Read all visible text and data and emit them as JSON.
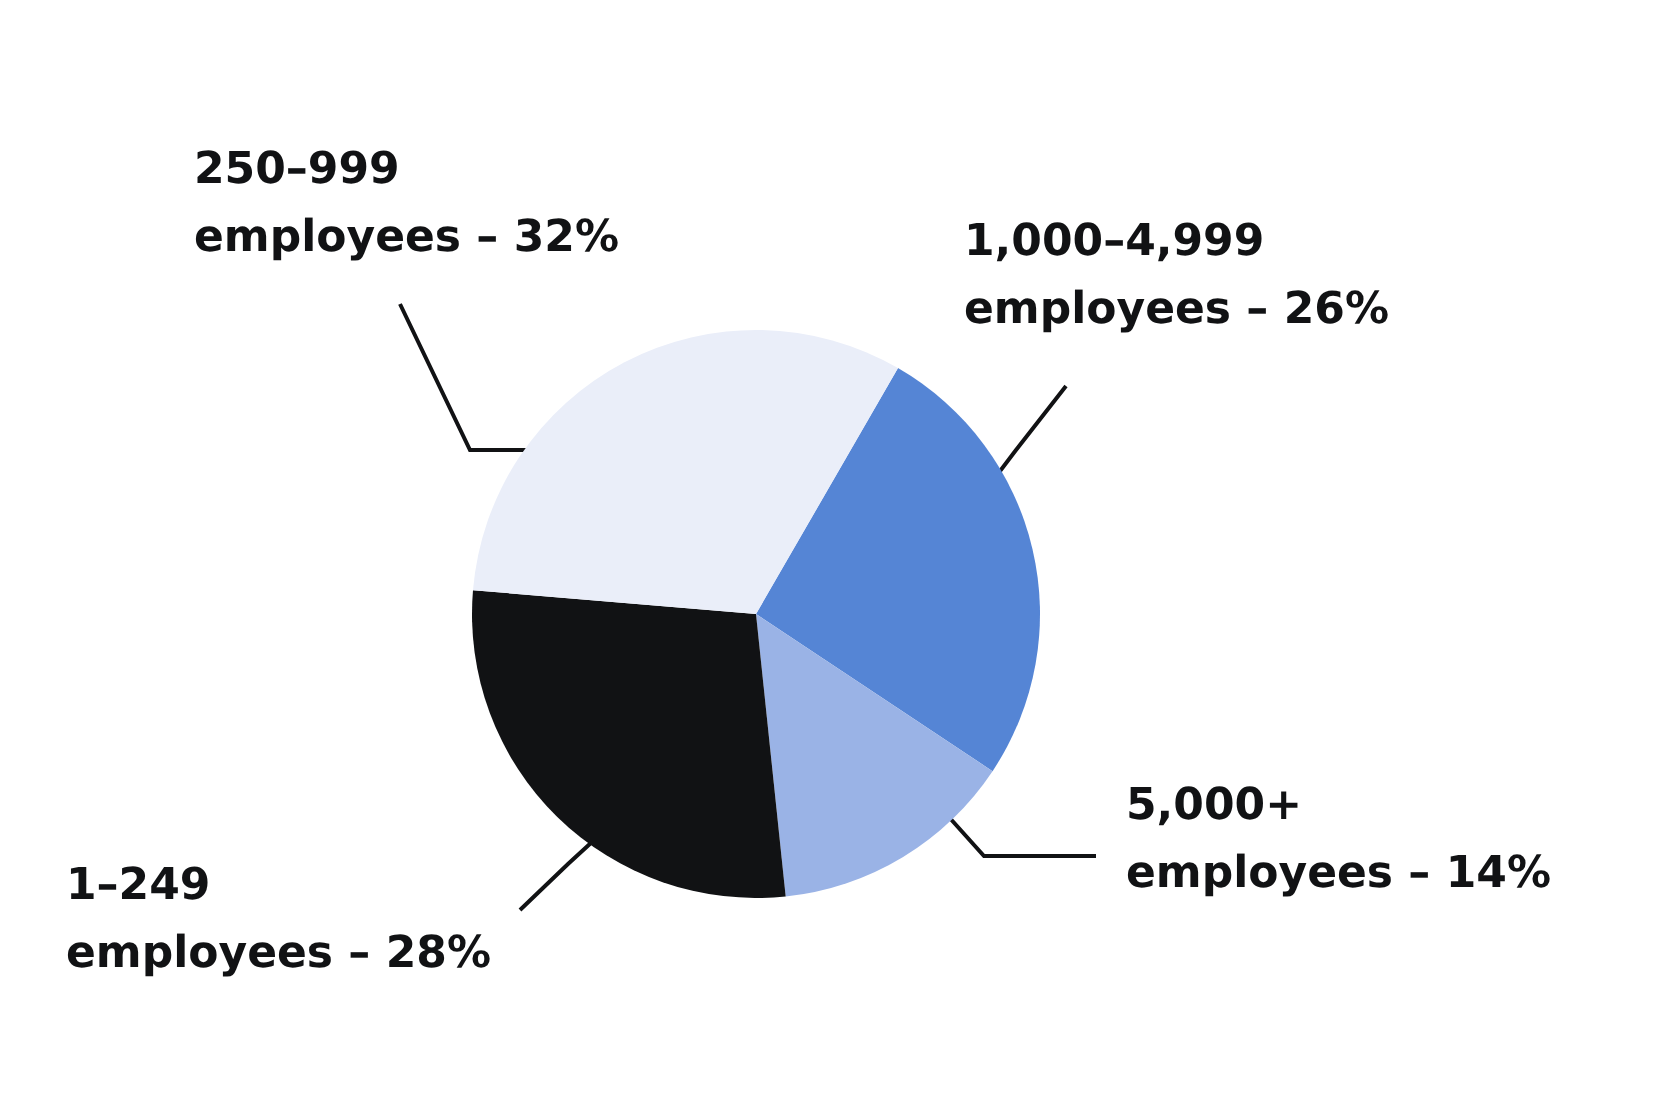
{
  "chart_data": {
    "type": "pie",
    "categories": [
      "1,000–4,999 employees",
      "5,000+ employees",
      "1–249 employees",
      "250–999 employees"
    ],
    "values": [
      26,
      14,
      28,
      32
    ],
    "value_labels": [
      "26%",
      "14%",
      "28%",
      "32%"
    ],
    "colors": [
      "#5585d5",
      "#9ab3e6",
      "#111214",
      "#eaeef9"
    ]
  }
}
